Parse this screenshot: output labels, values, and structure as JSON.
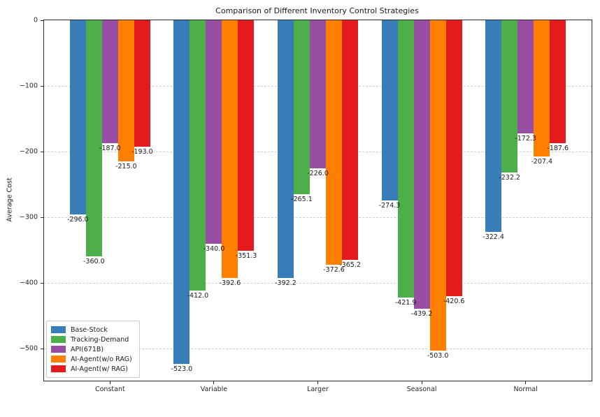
{
  "chart_data": {
    "type": "bar",
    "title": "Comparison of Different Inventory Control Strategies",
    "xlabel": "",
    "ylabel": "Average Cost",
    "categories": [
      "Constant",
      "Variable",
      "Larger",
      "Seasonal",
      "Normal"
    ],
    "series": [
      {
        "name": "Base-Stock",
        "color": "#377eb8",
        "values": [
          -296.0,
          -523.0,
          -392.2,
          -274.3,
          -322.4
        ]
      },
      {
        "name": "Tracking-Demand",
        "color": "#4daf4a",
        "values": [
          -360.0,
          -412.0,
          -265.1,
          -421.9,
          -232.2
        ]
      },
      {
        "name": "API(671B)",
        "color": "#984ea3",
        "values": [
          -187.0,
          -340.0,
          -226.0,
          -439.2,
          -172.3
        ]
      },
      {
        "name": "AI-Agent(w/o RAG)",
        "color": "#ff7f00",
        "values": [
          -215.0,
          -392.6,
          -372.6,
          -503.0,
          -207.4
        ]
      },
      {
        "name": "AI-Agent(w/ RAG)",
        "color": "#e41a1c",
        "values": [
          -193.0,
          -351.3,
          -365.2,
          -420.6,
          -187.6
        ]
      }
    ],
    "ylim": [
      -549,
      0
    ],
    "yticks": [
      0,
      -100,
      -200,
      -300,
      -400,
      -500
    ],
    "grid": "horizontal-dashed",
    "legend_position": "lower left",
    "bar_label_format": "%.1f"
  }
}
